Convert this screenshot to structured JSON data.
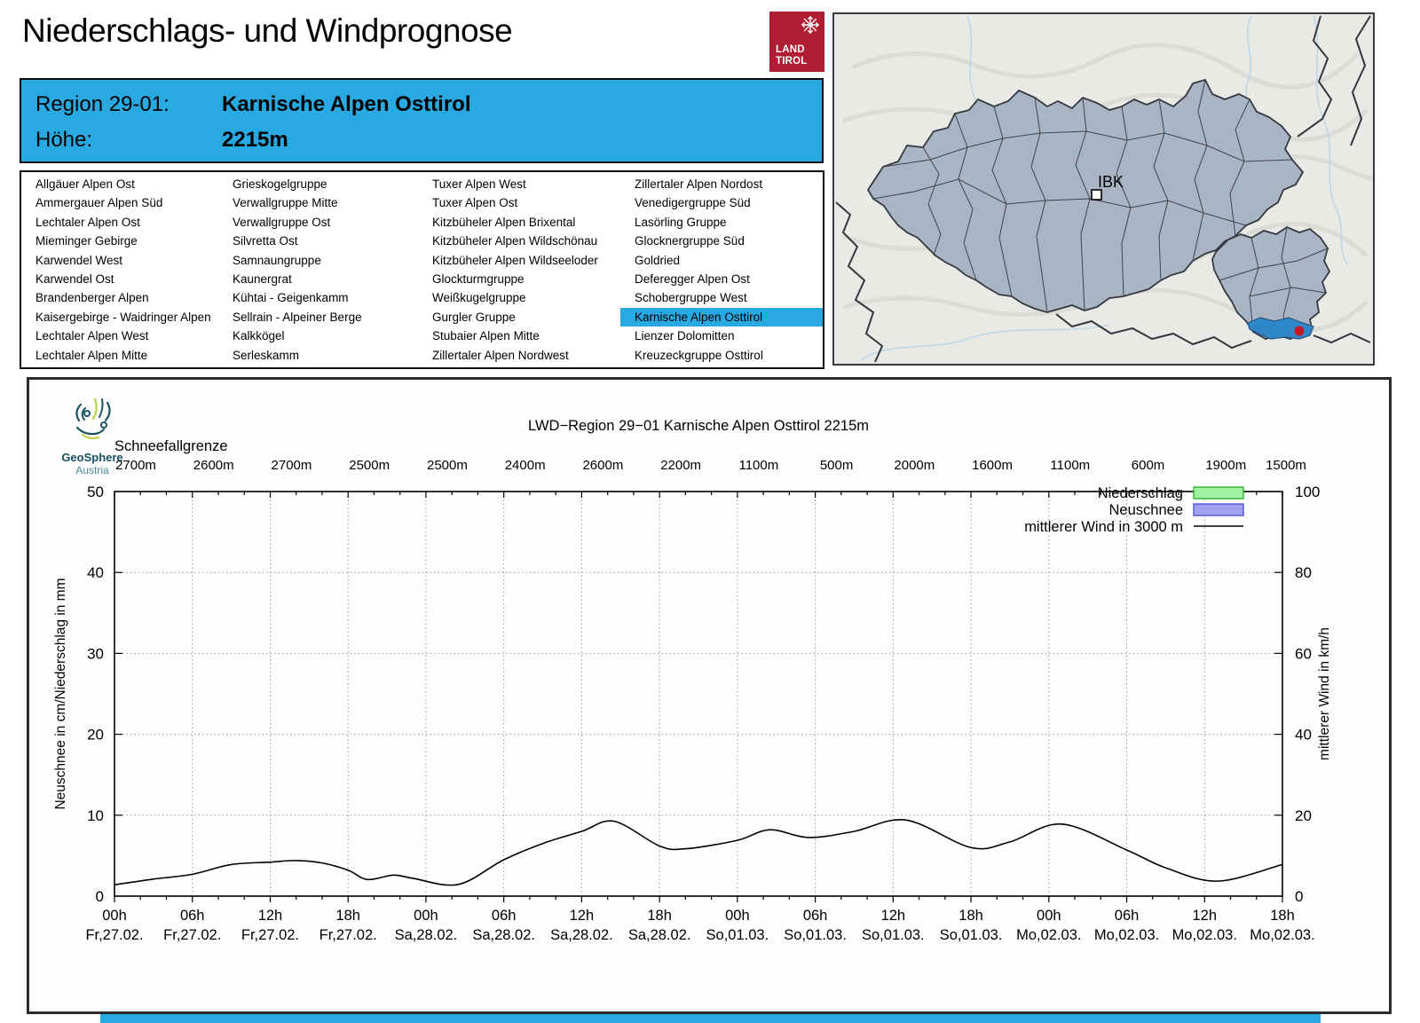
{
  "header": {
    "title": "Niederschlags- und Windprognose",
    "logo_line1": "LAND",
    "logo_line2": "TIROL",
    "region_label": "Region 29-01:",
    "region_name": "Karnische Alpen Osttirol",
    "altitude_label": "Höhe:",
    "altitude_value": "2215m",
    "accent_color": "#29a9e1",
    "logo_color": "#b01c31"
  },
  "region_table": {
    "selected": "Karnische Alpen Osttirol",
    "columns": [
      [
        "Allgäuer Alpen Ost",
        "Ammergauer Alpen Süd",
        "Lechtaler Alpen Ost",
        "Mieminger Gebirge",
        "Karwendel West",
        "Karwendel Ost",
        "Brandenberger Alpen",
        "Kaisergebirge - Waidringer Alpen",
        "Lechtaler Alpen West",
        "Lechtaler Alpen Mitte"
      ],
      [
        "Grieskogelgruppe",
        "Verwallgruppe Mitte",
        "Verwallgruppe Ost",
        "Silvretta Ost",
        "Samnaungruppe",
        "Kaunergrat",
        "Kühtai - Geigenkamm",
        "Sellrain - Alpeiner Berge",
        "Kalkkögel",
        "Serleskamm"
      ],
      [
        "Tuxer Alpen West",
        "Tuxer Alpen Ost",
        "Kitzbüheler Alpen Brixental",
        "Kitzbüheler Alpen Wildschönau",
        "Kitzbüheler Alpen Wildseeloder",
        "Glockturmgruppe",
        "Weißkugelgruppe",
        "Gurgler Gruppe",
        "Stubaier Alpen Mitte",
        "Zillertaler Alpen Nordwest"
      ],
      [
        "Zillertaler Alpen Nordost",
        "Venedigergruppe Süd",
        "Lasörling Gruppe",
        "Glocknergruppe Süd",
        "Goldried",
        "Deferegger Alpen Ost",
        "Schobergruppe West",
        "Karnische Alpen Osttirol",
        "Lienzer Dolomitten",
        "Kreuzeckgruppe Osttirol"
      ]
    ]
  },
  "map": {
    "city_label": "IBK",
    "selected_region_color": "#2f86c8",
    "region_fill": "#a9b5c4",
    "marker_color": "#c41826"
  },
  "brand": {
    "name": "GeoSphere",
    "sub": "Austria"
  },
  "chart_data": {
    "type": "line",
    "title": "LWD−Region 29−01 Karnische Alpen Osttirol 2215m",
    "snowline_label": "Schneefallgrenze",
    "snowline_values": [
      "2700m",
      "2600m",
      "2700m",
      "2500m",
      "2500m",
      "2400m",
      "2600m",
      "2200m",
      "1100m",
      "500m",
      "2000m",
      "1600m",
      "1100m",
      "600m",
      "1900m",
      "1500m"
    ],
    "x_ticks": [
      {
        "time": "00h",
        "date": "Fr,27.02."
      },
      {
        "time": "06h",
        "date": "Fr,27.02."
      },
      {
        "time": "12h",
        "date": "Fr,27.02."
      },
      {
        "time": "18h",
        "date": "Fr,27.02."
      },
      {
        "time": "00h",
        "date": "Sa,28.02."
      },
      {
        "time": "06h",
        "date": "Sa,28.02."
      },
      {
        "time": "12h",
        "date": "Sa,28.02."
      },
      {
        "time": "18h",
        "date": "Sa,28.02."
      },
      {
        "time": "00h",
        "date": "So,01.03."
      },
      {
        "time": "06h",
        "date": "So,01.03."
      },
      {
        "time": "12h",
        "date": "So,01.03."
      },
      {
        "time": "18h",
        "date": "So,01.03."
      },
      {
        "time": "00h",
        "date": "Mo,02.03."
      },
      {
        "time": "06h",
        "date": "Mo,02.03."
      },
      {
        "time": "12h",
        "date": "Mo,02.03."
      },
      {
        "time": "18h",
        "date": "Mo,02.03."
      }
    ],
    "x_range_hours": [
      0,
      90
    ],
    "y_left": {
      "label": "Neuschnee in cm/Niederschlag in mm",
      "range": [
        0,
        50
      ],
      "ticks": [
        0,
        10,
        20,
        30,
        40,
        50
      ]
    },
    "y_right": {
      "label": "mittlerer Wind in km/h",
      "range": [
        0,
        100
      ],
      "ticks": [
        0,
        20,
        40,
        60,
        80,
        100
      ]
    },
    "grid": true,
    "legend_position": "top-right",
    "legend": [
      {
        "label": "Niederschlag",
        "type": "box",
        "fill": "#a2f0a2",
        "border": "#2db52d"
      },
      {
        "label": "Neuschnee",
        "type": "box",
        "fill": "#a2a2f0",
        "border": "#5252d6"
      },
      {
        "label": "mittlerer Wind in 3000 m",
        "type": "line",
        "color": "#000000"
      }
    ],
    "series": [
      {
        "name": "Niederschlag",
        "axis": "left",
        "unit": "mm",
        "note": "no visible bars, 0 over the whole period",
        "values": 0
      },
      {
        "name": "Neuschnee",
        "axis": "left",
        "unit": "cm",
        "note": "no visible bars, 0 over the whole period",
        "values": 0
      },
      {
        "name": "mittlerer Wind in 3000 m",
        "axis": "right",
        "unit": "km/h",
        "x_hours": [
          0,
          3,
          6,
          9,
          12,
          14,
          16,
          18,
          19.5,
          21.5,
          23,
          26.5,
          30,
          33,
          36,
          38.5,
          42,
          44,
          48,
          50.5,
          53.5,
          57,
          61,
          66,
          69,
          73,
          78,
          81,
          85,
          90
        ],
        "values_kmh": [
          2.8,
          4.2,
          5.4,
          7.8,
          8.4,
          8.8,
          8.2,
          6.4,
          4.1,
          5.2,
          4.4,
          2.9,
          9.0,
          13.0,
          16.0,
          18.5,
          12.4,
          11.7,
          13.8,
          16.4,
          14.5,
          16.0,
          18.8,
          12.0,
          13.4,
          17.8,
          11.4,
          7.0,
          3.7,
          7.8
        ]
      }
    ]
  }
}
